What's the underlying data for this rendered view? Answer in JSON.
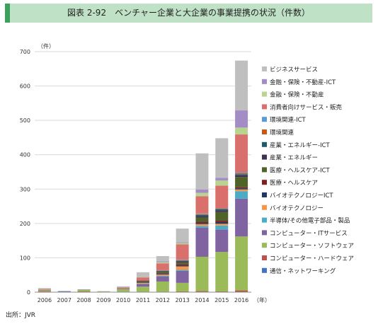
{
  "title": "図表 2-92　ベンチャー企業と大企業の事業提携の状況（件数）",
  "source": "出所：JVR",
  "colors": {
    "title_bg": "#bfe1c6",
    "title_accent": "#3aa05a"
  },
  "chart_data": {
    "type": "bar",
    "stacked": true,
    "title": "",
    "ylabel": "（件）",
    "xlabel": "（年）",
    "ylim": [
      0,
      700
    ],
    "yticks": [
      0,
      100,
      200,
      300,
      400,
      500,
      600,
      700
    ],
    "grid": true,
    "legend_position": "right",
    "categories": [
      "2006",
      "2007",
      "2008",
      "2009",
      "2010",
      "2011",
      "2012",
      "2013",
      "2014",
      "2015",
      "2016"
    ],
    "series": [
      {
        "name": "通信・ネットワーキング",
        "color": "#4472c4",
        "values": [
          0,
          2,
          0,
          0,
          0,
          0,
          0,
          0,
          0,
          0,
          0
        ]
      },
      {
        "name": "コンピューター・ハードウェア",
        "color": "#c0504d",
        "values": [
          2,
          0,
          2,
          0,
          1,
          1,
          1,
          2,
          3,
          2,
          5
        ]
      },
      {
        "name": "コンピューター・ソフトウェア",
        "color": "#9bbb59",
        "values": [
          3,
          0,
          5,
          2,
          7,
          15,
          30,
          25,
          100,
          115,
          157
        ]
      },
      {
        "name": "コンピューター・ITサービス",
        "color": "#8064a2",
        "values": [
          2,
          1,
          1,
          0,
          2,
          8,
          15,
          35,
          85,
          65,
          110
        ]
      },
      {
        "name": "半導体/その他電子部品・製品",
        "color": "#4bacc6",
        "values": [
          0,
          0,
          0,
          0,
          0,
          1,
          2,
          3,
          5,
          12,
          22
        ]
      },
      {
        "name": "バイオテクノロジー",
        "color": "#f79646",
        "values": [
          1,
          0,
          0,
          0,
          1,
          2,
          3,
          10,
          5,
          5,
          5
        ]
      },
      {
        "name": "バイオテクノロジーICT",
        "color": "#1f3864",
        "values": [
          0,
          0,
          0,
          0,
          0,
          1,
          2,
          3,
          3,
          5,
          3
        ]
      },
      {
        "name": "医療・ヘルスケア",
        "color": "#7f1f1f",
        "values": [
          0,
          0,
          0,
          0,
          0,
          1,
          2,
          3,
          4,
          4,
          3
        ]
      },
      {
        "name": "医療・ヘルスケア-ICT",
        "color": "#4f6228",
        "values": [
          0,
          0,
          0,
          0,
          1,
          2,
          4,
          5,
          12,
          25,
          30
        ]
      },
      {
        "name": "産業・エネルギー",
        "color": "#3f3151",
        "values": [
          0,
          0,
          0,
          0,
          0,
          1,
          2,
          4,
          5,
          5,
          5
        ]
      },
      {
        "name": "産業・エネルギー-ICT",
        "color": "#1f5c6b",
        "values": [
          0,
          0,
          0,
          0,
          0,
          1,
          1,
          2,
          3,
          3,
          3
        ]
      },
      {
        "name": "環境関連",
        "color": "#c55a11",
        "values": [
          0,
          0,
          0,
          0,
          0,
          1,
          1,
          1,
          2,
          2,
          3
        ]
      },
      {
        "name": "環境関連-ICT",
        "color": "#5b9bd5",
        "values": [
          0,
          0,
          0,
          0,
          0,
          0,
          1,
          1,
          2,
          2,
          3
        ]
      },
      {
        "name": "消費者向けサービス・販売",
        "color": "#d9706b",
        "values": [
          1,
          0,
          0,
          0,
          2,
          9,
          20,
          45,
          50,
          65,
          110
        ]
      },
      {
        "name": "金融・保険・不動産",
        "color": "#b8d48e",
        "values": [
          0,
          0,
          0,
          0,
          0,
          2,
          3,
          4,
          10,
          15,
          20
        ]
      },
      {
        "name": "金融・保険・不動産-ICT",
        "color": "#a48cc4",
        "values": [
          0,
          0,
          0,
          0,
          0,
          1,
          3,
          2,
          10,
          8,
          50
        ]
      },
      {
        "name": "ビジネスサービス",
        "color": "#bfbfbf",
        "values": [
          3,
          0,
          0,
          1,
          3,
          12,
          15,
          40,
          105,
          115,
          145
        ]
      }
    ]
  }
}
